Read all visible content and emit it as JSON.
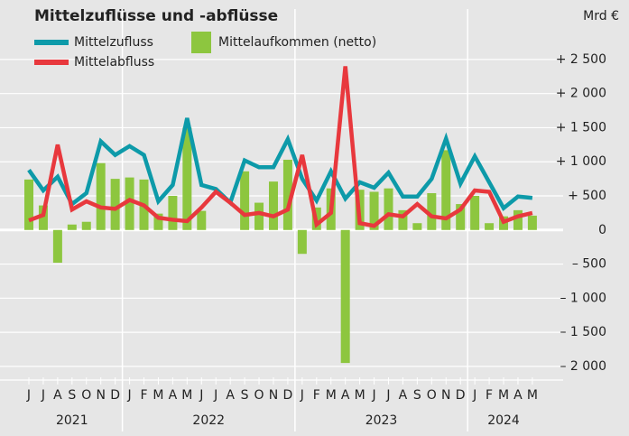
{
  "chart_data": {
    "type": "bar_line",
    "title": "Mittelzuflüsse und -abflüsse",
    "unit": "Mrd €",
    "categories": [
      "J",
      "J",
      "A",
      "S",
      "O",
      "N",
      "D",
      "J",
      "F",
      "M",
      "A",
      "M",
      "J",
      "J",
      "A",
      "S",
      "O",
      "N",
      "D",
      "J",
      "F",
      "M",
      "A",
      "M",
      "J",
      "J",
      "A",
      "S",
      "O",
      "N",
      "D",
      "J",
      "F",
      "M",
      "A",
      "M"
    ],
    "years": [
      "2021",
      "2022",
      "2023",
      "2024"
    ],
    "series": [
      {
        "name": "Mittelaufkommen (netto)",
        "type": "bar",
        "color": "#8dc63f",
        "values": [
          740,
          360,
          -480,
          80,
          120,
          980,
          750,
          770,
          740,
          240,
          500,
          1500,
          280,
          0,
          0,
          860,
          400,
          710,
          1030,
          -350,
          330,
          610,
          -1950,
          590,
          560,
          610,
          290,
          100,
          540,
          1170,
          380,
          500,
          100,
          200,
          290,
          210
        ]
      },
      {
        "name": "Mittelzufluss",
        "type": "line",
        "color": "#0d9aa9",
        "values": [
          880,
          580,
          780,
          380,
          540,
          1300,
          1100,
          1230,
          1100,
          420,
          660,
          1640,
          660,
          600,
          400,
          1020,
          920,
          920,
          1330,
          750,
          430,
          860,
          460,
          700,
          620,
          840,
          490,
          490,
          750,
          1340,
          680,
          1080,
          700,
          320,
          490,
          470
        ]
      },
      {
        "name": "Mittelabfluss",
        "type": "line",
        "color": "#e8383d",
        "values": [
          140,
          220,
          1250,
          300,
          420,
          330,
          310,
          440,
          360,
          180,
          150,
          130,
          330,
          560,
          400,
          220,
          250,
          200,
          300,
          1100,
          80,
          250,
          2400,
          100,
          60,
          230,
          200,
          380,
          200,
          170,
          300,
          580,
          560,
          120,
          200,
          250
        ]
      }
    ],
    "ylim": [
      -2200,
      3200
    ],
    "yticks": [
      {
        "value": 2500,
        "label": "+ 2 500"
      },
      {
        "value": 2000,
        "label": "+ 2 000"
      },
      {
        "value": 1500,
        "label": "+ 1 500"
      },
      {
        "value": 1000,
        "label": "+ 1 000"
      },
      {
        "value": 500,
        "label": "+ 500"
      },
      0,
      {
        "value": -500,
        "label": "– 500"
      },
      {
        "value": -1000,
        "label": "– 1 000"
      },
      {
        "value": -1500,
        "label": "– 1 500"
      },
      {
        "value": -2000,
        "label": "– 2 000"
      }
    ],
    "grid": true
  }
}
